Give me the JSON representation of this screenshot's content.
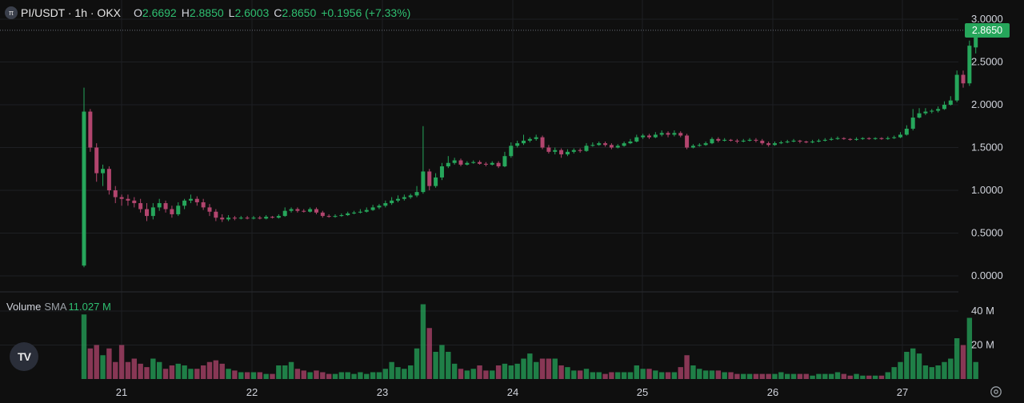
{
  "header": {
    "symbol": "PI/USDT · 1h · OKX",
    "open_label": "O",
    "open": "2.6692",
    "high_label": "H",
    "high": "2.8850",
    "low_label": "L",
    "low": "2.6003",
    "close_label": "C",
    "close": "2.8650",
    "change": "+0.1956 (+7.33%)"
  },
  "volume_pane": {
    "label": "Volume",
    "sma_label": "SMA",
    "sma_value": "11.027 M"
  },
  "last_price": "2.8650",
  "colors": {
    "up": "#26a65b",
    "down": "#b2456e",
    "background": "#0f0f0f",
    "grid": "#1e1f23"
  },
  "chart_data": {
    "type": "candlestick",
    "x_tick_labels": [
      "21",
      "22",
      "23",
      "24",
      "25",
      "26",
      "27"
    ],
    "y_tick_labels": [
      "3.0000",
      "2.5000",
      "2.0000",
      "1.5000",
      "1.0000",
      "0.5000",
      "0.0000"
    ],
    "ylim": [
      0,
      3.0
    ],
    "volume_tick_labels": [
      "40 M",
      "20 M"
    ],
    "volume_ylim": [
      0,
      40
    ],
    "candles": [
      [
        0.12,
        1.92,
        0.1,
        2.2,
        38
      ],
      [
        1.92,
        1.5,
        1.45,
        1.95,
        18
      ],
      [
        1.5,
        1.2,
        1.1,
        1.55,
        20
      ],
      [
        1.2,
        1.25,
        1.05,
        1.3,
        14
      ],
      [
        1.25,
        1.0,
        0.95,
        1.28,
        18
      ],
      [
        1.0,
        0.92,
        0.85,
        1.05,
        10
      ],
      [
        0.92,
        0.9,
        0.82,
        0.95,
        20
      ],
      [
        0.9,
        0.88,
        0.82,
        0.95,
        10
      ],
      [
        0.88,
        0.85,
        0.8,
        0.92,
        12
      ],
      [
        0.85,
        0.78,
        0.74,
        0.9,
        9
      ],
      [
        0.78,
        0.7,
        0.64,
        0.85,
        7
      ],
      [
        0.7,
        0.8,
        0.66,
        0.85,
        12
      ],
      [
        0.8,
        0.85,
        0.76,
        0.9,
        10
      ],
      [
        0.85,
        0.78,
        0.74,
        0.88,
        6
      ],
      [
        0.78,
        0.72,
        0.68,
        0.82,
        8
      ],
      [
        0.72,
        0.82,
        0.7,
        0.86,
        9
      ],
      [
        0.82,
        0.88,
        0.78,
        0.9,
        8
      ],
      [
        0.88,
        0.9,
        0.85,
        0.95,
        6
      ],
      [
        0.9,
        0.86,
        0.82,
        0.93,
        6
      ],
      [
        0.86,
        0.8,
        0.77,
        0.9,
        8
      ],
      [
        0.8,
        0.75,
        0.7,
        0.84,
        10
      ],
      [
        0.75,
        0.68,
        0.64,
        0.78,
        11
      ],
      [
        0.68,
        0.66,
        0.63,
        0.72,
        9
      ],
      [
        0.66,
        0.68,
        0.64,
        0.71,
        6
      ],
      [
        0.68,
        0.67,
        0.65,
        0.7,
        5
      ],
      [
        0.67,
        0.68,
        0.66,
        0.7,
        4
      ],
      [
        0.68,
        0.67,
        0.66,
        0.7,
        4
      ],
      [
        0.67,
        0.68,
        0.66,
        0.7,
        4
      ],
      [
        0.68,
        0.67,
        0.66,
        0.7,
        4
      ],
      [
        0.67,
        0.69,
        0.66,
        0.71,
        3
      ],
      [
        0.69,
        0.68,
        0.67,
        0.7,
        3
      ],
      [
        0.68,
        0.7,
        0.67,
        0.72,
        8
      ],
      [
        0.7,
        0.76,
        0.69,
        0.8,
        8
      ],
      [
        0.76,
        0.78,
        0.74,
        0.8,
        10
      ],
      [
        0.78,
        0.76,
        0.74,
        0.8,
        6
      ],
      [
        0.76,
        0.75,
        0.74,
        0.78,
        5
      ],
      [
        0.75,
        0.78,
        0.74,
        0.8,
        4
      ],
      [
        0.78,
        0.74,
        0.72,
        0.8,
        5
      ],
      [
        0.74,
        0.7,
        0.68,
        0.76,
        4
      ],
      [
        0.7,
        0.69,
        0.68,
        0.72,
        3
      ],
      [
        0.69,
        0.7,
        0.68,
        0.72,
        3
      ],
      [
        0.7,
        0.71,
        0.69,
        0.73,
        4
      ],
      [
        0.71,
        0.73,
        0.7,
        0.75,
        4
      ],
      [
        0.73,
        0.74,
        0.72,
        0.76,
        3
      ],
      [
        0.74,
        0.75,
        0.73,
        0.78,
        4
      ],
      [
        0.75,
        0.77,
        0.74,
        0.8,
        3
      ],
      [
        0.77,
        0.8,
        0.76,
        0.83,
        4
      ],
      [
        0.8,
        0.82,
        0.78,
        0.84,
        4
      ],
      [
        0.82,
        0.85,
        0.8,
        0.88,
        6
      ],
      [
        0.85,
        0.88,
        0.83,
        0.92,
        10
      ],
      [
        0.88,
        0.9,
        0.86,
        0.94,
        7
      ],
      [
        0.9,
        0.92,
        0.88,
        0.95,
        6
      ],
      [
        0.92,
        0.94,
        0.9,
        0.96,
        8
      ],
      [
        0.94,
        0.98,
        0.92,
        1.05,
        18
      ],
      [
        0.98,
        1.22,
        0.96,
        1.75,
        44
      ],
      [
        1.22,
        1.05,
        1.0,
        1.25,
        30
      ],
      [
        1.05,
        1.15,
        1.03,
        1.2,
        16
      ],
      [
        1.15,
        1.28,
        1.12,
        1.32,
        20
      ],
      [
        1.28,
        1.32,
        1.26,
        1.4,
        16
      ],
      [
        1.32,
        1.35,
        1.3,
        1.38,
        9
      ],
      [
        1.35,
        1.3,
        1.28,
        1.37,
        6
      ],
      [
        1.3,
        1.32,
        1.29,
        1.34,
        5
      ],
      [
        1.32,
        1.33,
        1.31,
        1.35,
        6
      ],
      [
        1.33,
        1.31,
        1.3,
        1.35,
        8
      ],
      [
        1.31,
        1.3,
        1.28,
        1.33,
        5
      ],
      [
        1.3,
        1.32,
        1.29,
        1.34,
        5
      ],
      [
        1.32,
        1.28,
        1.26,
        1.34,
        8
      ],
      [
        1.28,
        1.4,
        1.27,
        1.45,
        9
      ],
      [
        1.4,
        1.52,
        1.38,
        1.56,
        8
      ],
      [
        1.52,
        1.55,
        1.5,
        1.58,
        9
      ],
      [
        1.55,
        1.58,
        1.53,
        1.65,
        12
      ],
      [
        1.58,
        1.6,
        1.56,
        1.62,
        15
      ],
      [
        1.6,
        1.62,
        1.58,
        1.65,
        10
      ],
      [
        1.62,
        1.5,
        1.48,
        1.64,
        12
      ],
      [
        1.5,
        1.45,
        1.43,
        1.53,
        12
      ],
      [
        1.45,
        1.47,
        1.42,
        1.5,
        12
      ],
      [
        1.47,
        1.42,
        1.38,
        1.49,
        8
      ],
      [
        1.42,
        1.45,
        1.4,
        1.48,
        7
      ],
      [
        1.45,
        1.47,
        1.43,
        1.49,
        5
      ],
      [
        1.47,
        1.46,
        1.44,
        1.49,
        5
      ],
      [
        1.46,
        1.52,
        1.45,
        1.55,
        6
      ],
      [
        1.52,
        1.53,
        1.51,
        1.56,
        4
      ],
      [
        1.53,
        1.55,
        1.52,
        1.57,
        4
      ],
      [
        1.55,
        1.53,
        1.51,
        1.57,
        3
      ],
      [
        1.53,
        1.5,
        1.48,
        1.55,
        4
      ],
      [
        1.5,
        1.52,
        1.49,
        1.54,
        4
      ],
      [
        1.52,
        1.55,
        1.51,
        1.57,
        4
      ],
      [
        1.55,
        1.57,
        1.54,
        1.6,
        4
      ],
      [
        1.57,
        1.62,
        1.56,
        1.65,
        8
      ],
      [
        1.62,
        1.64,
        1.6,
        1.66,
        6
      ],
      [
        1.64,
        1.62,
        1.6,
        1.66,
        6
      ],
      [
        1.62,
        1.65,
        1.61,
        1.68,
        5
      ],
      [
        1.65,
        1.67,
        1.63,
        1.7,
        4
      ],
      [
        1.67,
        1.65,
        1.62,
        1.69,
        4
      ],
      [
        1.65,
        1.67,
        1.63,
        1.7,
        4
      ],
      [
        1.67,
        1.64,
        1.62,
        1.69,
        7
      ],
      [
        1.64,
        1.5,
        1.48,
        1.66,
        14
      ],
      [
        1.5,
        1.52,
        1.49,
        1.54,
        8
      ],
      [
        1.52,
        1.53,
        1.51,
        1.55,
        6
      ],
      [
        1.53,
        1.55,
        1.52,
        1.57,
        5
      ],
      [
        1.55,
        1.6,
        1.54,
        1.62,
        5
      ],
      [
        1.6,
        1.58,
        1.56,
        1.62,
        5
      ],
      [
        1.58,
        1.59,
        1.57,
        1.61,
        4
      ],
      [
        1.59,
        1.58,
        1.57,
        1.6,
        4
      ],
      [
        1.58,
        1.57,
        1.55,
        1.6,
        3
      ],
      [
        1.57,
        1.58,
        1.56,
        1.6,
        3
      ],
      [
        1.58,
        1.59,
        1.57,
        1.61,
        3
      ],
      [
        1.59,
        1.58,
        1.56,
        1.61,
        3
      ],
      [
        1.58,
        1.55,
        1.53,
        1.6,
        3
      ],
      [
        1.55,
        1.53,
        1.51,
        1.57,
        3
      ],
      [
        1.53,
        1.55,
        1.52,
        1.57,
        3
      ],
      [
        1.55,
        1.56,
        1.54,
        1.58,
        4
      ],
      [
        1.56,
        1.57,
        1.55,
        1.59,
        3
      ],
      [
        1.57,
        1.58,
        1.56,
        1.6,
        3
      ],
      [
        1.58,
        1.57,
        1.55,
        1.59,
        3
      ],
      [
        1.57,
        1.56,
        1.55,
        1.58,
        3
      ],
      [
        1.56,
        1.57,
        1.55,
        1.59,
        2
      ],
      [
        1.57,
        1.58,
        1.56,
        1.6,
        3
      ],
      [
        1.58,
        1.59,
        1.57,
        1.61,
        3
      ],
      [
        1.59,
        1.6,
        1.58,
        1.62,
        3
      ],
      [
        1.6,
        1.61,
        1.59,
        1.63,
        4
      ],
      [
        1.61,
        1.6,
        1.59,
        1.62,
        3
      ],
      [
        1.6,
        1.59,
        1.58,
        1.61,
        2
      ],
      [
        1.59,
        1.6,
        1.58,
        1.62,
        3
      ],
      [
        1.6,
        1.61,
        1.59,
        1.62,
        2
      ],
      [
        1.61,
        1.6,
        1.59,
        1.62,
        2
      ],
      [
        1.6,
        1.61,
        1.59,
        1.62,
        2
      ],
      [
        1.61,
        1.6,
        1.59,
        1.62,
        2
      ],
      [
        1.6,
        1.61,
        1.59,
        1.63,
        4
      ],
      [
        1.61,
        1.62,
        1.6,
        1.64,
        7
      ],
      [
        1.62,
        1.65,
        1.61,
        1.68,
        10
      ],
      [
        1.65,
        1.72,
        1.64,
        1.76,
        16
      ],
      [
        1.72,
        1.85,
        1.7,
        1.95,
        18
      ],
      [
        1.85,
        1.9,
        1.84,
        1.96,
        15
      ],
      [
        1.9,
        1.92,
        1.88,
        1.96,
        8
      ],
      [
        1.92,
        1.93,
        1.9,
        1.95,
        7
      ],
      [
        1.93,
        1.95,
        1.91,
        1.98,
        8
      ],
      [
        1.95,
        2.0,
        1.94,
        2.04,
        10
      ],
      [
        2.0,
        2.05,
        1.99,
        2.1,
        12
      ],
      [
        2.05,
        2.35,
        2.03,
        2.4,
        24
      ],
      [
        2.35,
        2.25,
        2.2,
        2.4,
        20
      ],
      [
        2.25,
        2.69,
        2.22,
        2.75,
        36
      ],
      [
        2.67,
        2.87,
        2.6,
        2.89,
        10
      ]
    ]
  }
}
